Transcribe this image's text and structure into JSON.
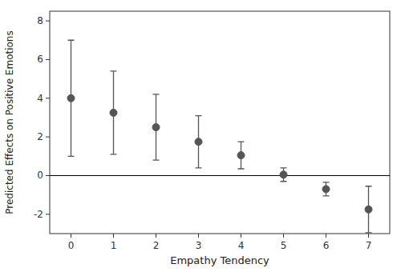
{
  "chart_data": {
    "type": "scatter",
    "x": [
      0,
      1,
      2,
      3,
      4,
      5,
      6,
      7
    ],
    "values": [
      4.0,
      3.25,
      2.5,
      1.75,
      1.05,
      0.05,
      -0.7,
      -1.75
    ],
    "upper": [
      7.0,
      5.4,
      4.2,
      3.1,
      1.75,
      0.4,
      -0.35,
      -0.55
    ],
    "lower": [
      1.0,
      1.1,
      0.8,
      0.4,
      0.35,
      -0.3,
      -1.05,
      -2.95
    ],
    "xlabel": "Empathy Tendency",
    "ylabel": "Predicted Effects on Positive Emotions",
    "xlim": [
      -0.5,
      7.5
    ],
    "ylim": [
      -3.0,
      8.5
    ],
    "xticks": [
      0,
      1,
      2,
      3,
      4,
      5,
      6,
      7
    ],
    "yticks": [
      -2,
      0,
      2,
      4,
      6,
      8
    ],
    "hline": 0,
    "color": "#555555"
  }
}
